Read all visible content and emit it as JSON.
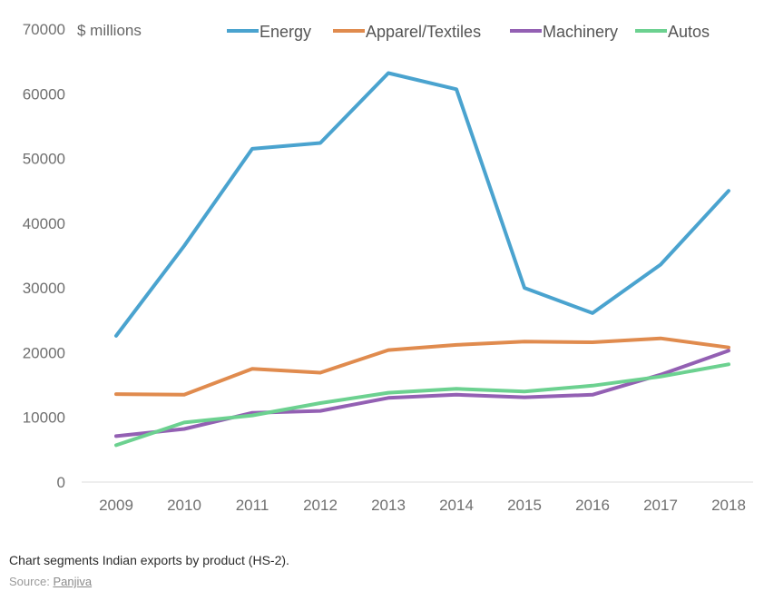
{
  "chart_data": {
    "type": "line",
    "unit_label": "$ millions",
    "categories": [
      "2009",
      "2010",
      "2011",
      "2012",
      "2013",
      "2014",
      "2015",
      "2016",
      "2017",
      "2018"
    ],
    "yticks": [
      "0",
      "10000",
      "20000",
      "30000",
      "40000",
      "50000",
      "60000",
      "70000"
    ],
    "ylim": [
      0,
      70000
    ],
    "grid": false,
    "legend_position": "top",
    "series": [
      {
        "name": "Energy",
        "color": "#4aa3cf",
        "values": [
          22600,
          36500,
          51500,
          52400,
          63200,
          60700,
          30000,
          26100,
          33600,
          45000
        ]
      },
      {
        "name": "Apparel/Textiles",
        "color": "#e08b4e",
        "values": [
          13600,
          13500,
          17500,
          16900,
          20400,
          21200,
          21700,
          21600,
          22200,
          20800
        ]
      },
      {
        "name": "Machinery",
        "color": "#9360b3",
        "values": [
          7100,
          8200,
          10700,
          11000,
          13000,
          13500,
          13100,
          13500,
          16600,
          20300
        ]
      },
      {
        "name": "Autos",
        "color": "#6cd190",
        "values": [
          5700,
          9200,
          10300,
          12200,
          13800,
          14400,
          14000,
          14900,
          16300,
          18200
        ]
      }
    ]
  },
  "caption": "Chart segments Indian exports by product (HS-2).",
  "source": {
    "label": "Source:",
    "link_text": "Panjiva"
  }
}
